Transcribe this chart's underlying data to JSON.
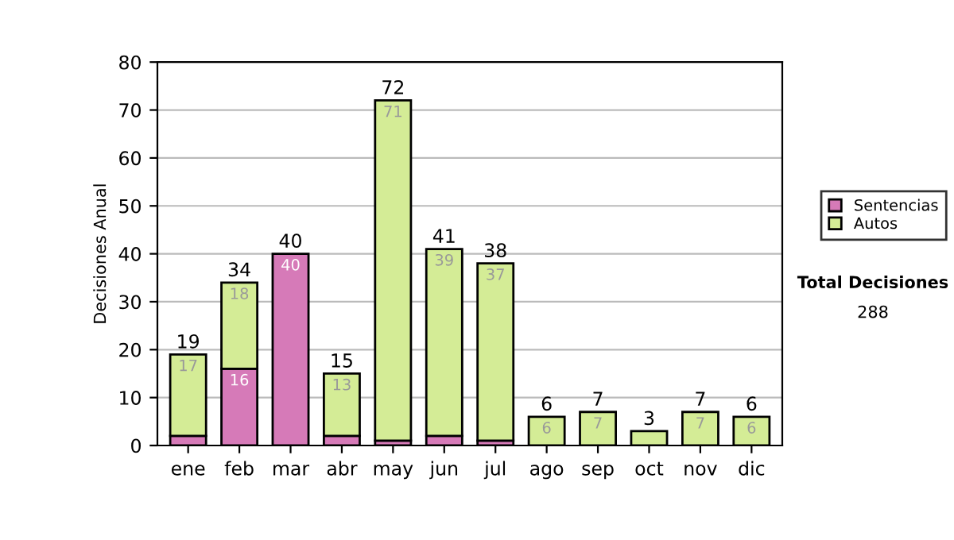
{
  "chart_data": {
    "type": "bar",
    "stacked": true,
    "ylabel": "Decisiones Anual",
    "categories": [
      "ene",
      "feb",
      "mar",
      "abr",
      "may",
      "jun",
      "jul",
      "ago",
      "sep",
      "oct",
      "nov",
      "dic"
    ],
    "series": [
      {
        "name": "Sentencias",
        "color": "#d67ab8",
        "values": [
          2,
          16,
          40,
          2,
          1,
          2,
          1,
          0,
          0,
          0,
          0,
          0
        ],
        "value_labels": [
          null,
          "16",
          "40",
          null,
          null,
          null,
          null,
          null,
          null,
          null,
          null,
          null
        ]
      },
      {
        "name": "Autos",
        "color": "#d4ec96",
        "values": [
          17,
          18,
          0,
          13,
          71,
          39,
          37,
          6,
          7,
          3,
          7,
          6
        ],
        "value_labels": [
          "17",
          "18",
          null,
          "13",
          "71",
          "39",
          "37",
          "6",
          "7",
          null,
          "7",
          "6"
        ]
      }
    ],
    "totals": [
      "19",
      "34",
      "40",
      "15",
      "72",
      "41",
      "38",
      "6",
      "7",
      "3",
      "7",
      "6"
    ],
    "ylim": [
      0,
      80
    ],
    "yticks": [
      0,
      10,
      20,
      30,
      40,
      50,
      60,
      70,
      80
    ],
    "grid": "y",
    "legend": "right",
    "annotations": [
      "Total Decisiones",
      "288"
    ]
  }
}
